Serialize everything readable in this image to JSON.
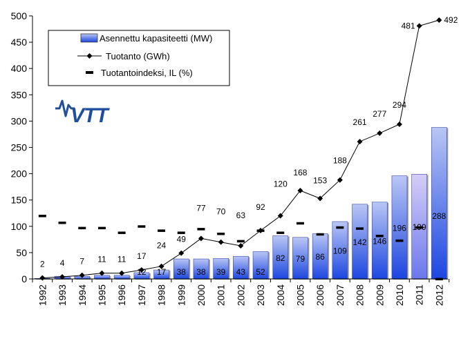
{
  "logo": {
    "text": "VTT"
  },
  "legend": {
    "items": [
      {
        "label": "Asennettu kapasiteetti (MW)",
        "kind": "bar"
      },
      {
        "label": "Tuotanto (GWh)",
        "kind": "line"
      },
      {
        "label": "Tuotantoindeksi, IL (%)",
        "kind": "dash"
      }
    ]
  },
  "colors": {
    "bar_fill_bottom": "#1c46e0",
    "bar_fill_top": "#b9c6f5",
    "bar_highlight_top": "#d6cdf7",
    "bar_highlight_bottom": "#6a78ec",
    "line": "#000000",
    "marker": "#000000",
    "index_dash": "#000000",
    "axis": "#000000"
  },
  "chart_data": {
    "type": "bar",
    "categories": [
      "1992",
      "1993",
      "1994",
      "1995",
      "1996",
      "1997",
      "1998",
      "1999",
      "2000",
      "2001",
      "2002",
      "2003",
      "2004",
      "2005",
      "2006",
      "2007",
      "2008",
      "2009",
      "2010",
      "2011",
      "2012"
    ],
    "series": [
      {
        "name": "Asennettu kapasiteetti (MW)",
        "type": "bar",
        "values": [
          1,
          5,
          5,
          7,
          7,
          12,
          17,
          38,
          38,
          39,
          43,
          52,
          82,
          79,
          86,
          109,
          142,
          146,
          196,
          199,
          288
        ],
        "data_labels": [
          "",
          "",
          "",
          "",
          "",
          "12",
          "17",
          "38",
          "38",
          "39",
          "43",
          "52",
          "82",
          "79",
          "86",
          "109",
          "142",
          "146",
          "196",
          "199",
          "288"
        ]
      },
      {
        "name": "Tuotanto (GWh)",
        "type": "line",
        "values": [
          2,
          4,
          7,
          11,
          11,
          17,
          24,
          49,
          77,
          70,
          63,
          92,
          120,
          168,
          153,
          188,
          261,
          277,
          294,
          481,
          492
        ],
        "data_labels": [
          "2",
          "4",
          "7",
          "11",
          "11",
          "17",
          "24",
          "49",
          "77",
          "70",
          "63",
          "92",
          "120",
          "168",
          "153",
          "188",
          "261",
          "277",
          "294",
          "481",
          "492"
        ]
      },
      {
        "name": "Tuotantoindeksi, IL (%)",
        "type": "dash",
        "values": [
          120,
          107,
          97,
          97,
          88,
          100,
          92,
          88,
          95,
          86,
          72,
          92,
          88,
          106,
          85,
          98,
          96,
          82,
          73,
          98,
          0
        ]
      }
    ],
    "highlight_category": "2011",
    "yticks": [
      "0",
      "50",
      "100",
      "150",
      "200",
      "250",
      "300",
      "350",
      "400",
      "450",
      "500"
    ],
    "ylim": [
      0,
      500
    ],
    "grid": false,
    "legend_position": "top-left"
  }
}
